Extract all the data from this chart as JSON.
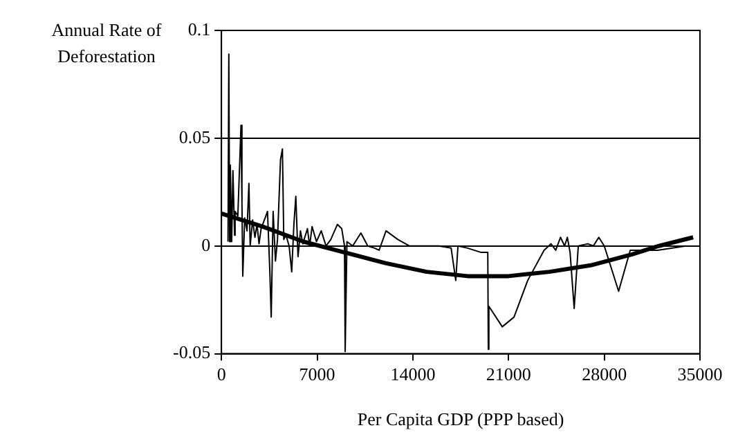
{
  "chart_data": {
    "type": "line",
    "ylabel": "Annual Rate of Deforestation",
    "xlabel": "Per Capita GDP (PPP based)",
    "xlim": [
      0,
      35000
    ],
    "xticks": [
      0,
      7000,
      14000,
      21000,
      28000,
      35000
    ],
    "ylim": [
      -0.05,
      0.1
    ],
    "yticks": [
      -0.05,
      0,
      0.05,
      0.1
    ],
    "grid": "y",
    "legend": false,
    "marker": "none",
    "series": [
      {
        "color": "#000000",
        "x": [
          480,
          540,
          600,
          650,
          750,
          840,
          960,
          1000,
          1200,
          1430,
          1500,
          1560,
          1700,
          1870,
          2010,
          2100,
          2280,
          2450,
          2600,
          2750,
          2900,
          3370,
          3540,
          3640,
          3780,
          3950,
          4100,
          4320,
          4460,
          4560,
          4720,
          4950,
          5140,
          5300,
          5440,
          5600,
          5780,
          5950,
          6290,
          6450,
          6630,
          6950,
          7300,
          7650,
          8000,
          8480,
          8800,
          9000,
          9050,
          9180,
          9600,
          10200,
          10700,
          11200,
          11530,
          12040,
          12900,
          13740,
          14900,
          15900,
          16800,
          17140,
          17300,
          18000,
          19000,
          19480,
          19520,
          19560,
          20540,
          21400,
          22400,
          23600,
          24100,
          24450,
          24800,
          25100,
          25300,
          25500,
          25800,
          26100,
          26800,
          27200,
          27600,
          28000,
          29050,
          29900,
          30800,
          31900,
          33980
        ],
        "values": [
          0.002,
          0.089,
          0.002,
          0.0375,
          0.002,
          0.035,
          0.005,
          0.016,
          0.014,
          0.056,
          0.02,
          -0.014,
          0.013,
          0.007,
          0.029,
          0,
          0.012,
          0.004,
          0.01,
          0.001,
          0.008,
          0.016,
          -0.012,
          -0.033,
          0.016,
          -0.007,
          0.003,
          0.04,
          0.045,
          0.003,
          0.005,
          0.0,
          -0.012,
          0.01,
          0.023,
          -0.005,
          0.007,
          0.001,
          0.008,
          0.0,
          0.009,
          0.002,
          0.007,
          0.0,
          0.003,
          0.01,
          0.008,
          0.0,
          -0.049,
          0.002,
          0.0,
          0.006,
          0.0,
          -0.001,
          -0.002,
          0.007,
          0.003,
          0.0,
          0.0,
          0.0,
          -0.001,
          -0.016,
          0.0,
          -0.001,
          -0.003,
          -0.003,
          -0.048,
          -0.028,
          -0.0375,
          -0.033,
          -0.016,
          -0.002,
          0.001,
          -0.002,
          0.004,
          0.0,
          0.004,
          -0.003,
          -0.029,
          0.0,
          0.001,
          0.0,
          0.004,
          0.0,
          -0.021,
          -0.002,
          -0.002,
          -0.002,
          0.0
        ]
      },
      {
        "color": "#000000",
        "x": [
          0,
          3000,
          6000,
          9000,
          12000,
          15000,
          18000,
          21000,
          24000,
          27000,
          30000,
          32000,
          34500
        ],
        "values": [
          0.015,
          0.009,
          0.002,
          -0.003,
          -0.008,
          -0.012,
          -0.014,
          -0.014,
          -0.012,
          -0.009,
          -0.004,
          0,
          0.004
        ]
      }
    ]
  }
}
